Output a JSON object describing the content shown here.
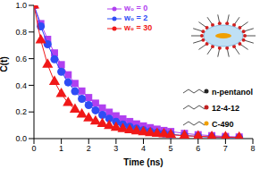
{
  "chart_data": {
    "type": "line",
    "xlabel": "Time (ns)",
    "ylabel": "C(t)",
    "x": [
      0,
      0.25,
      0.5,
      0.75,
      1,
      1.25,
      1.5,
      1.75,
      2,
      2.25,
      2.5,
      2.75,
      3,
      3.25,
      3.5,
      3.75,
      4,
      4.25,
      4.5,
      4.75,
      5,
      5.5,
      6,
      6.5,
      7,
      7.5
    ],
    "series": [
      {
        "name": "w₀ = 0",
        "color": "#b040f0",
        "marker": "square",
        "values": [
          1.0,
          0.863,
          0.745,
          0.643,
          0.555,
          0.479,
          0.414,
          0.357,
          0.308,
          0.266,
          0.23,
          0.198,
          0.171,
          0.148,
          0.128,
          0.11,
          0.095,
          0.082,
          0.071,
          0.061,
          0.053,
          0.039,
          0.029,
          0.022,
          0.016,
          0.012
        ]
      },
      {
        "name": "w₀ = 2",
        "color": "#2f4cf5",
        "marker": "circle",
        "values": [
          1.0,
          0.842,
          0.708,
          0.596,
          0.502,
          0.422,
          0.355,
          0.299,
          0.252,
          0.212,
          0.178,
          0.15,
          0.126,
          0.106,
          0.089,
          0.075,
          0.063,
          0.053,
          0.045,
          0.038,
          0.032,
          0.023,
          0.016,
          0.011,
          0.008,
          0.006
        ]
      },
      {
        "name": "w₀ = 30",
        "color": "#f01818",
        "marker": "triangle",
        "values": [
          1.0,
          0.738,
          0.555,
          0.427,
          0.335,
          0.268,
          0.218,
          0.181,
          0.152,
          0.129,
          0.11,
          0.096,
          0.082,
          0.072,
          0.063,
          0.055,
          0.048,
          0.042,
          0.037,
          0.033,
          0.029,
          0.022,
          0.017,
          0.014,
          0.011,
          0.008
        ]
      }
    ],
    "xlim": [
      0,
      8
    ],
    "xticks": [
      0,
      1,
      2,
      3,
      4,
      5,
      6,
      7,
      8
    ],
    "ylim": [
      0,
      1
    ],
    "yticks": [
      {
        "value": 0,
        "label": "0.0"
      },
      {
        "value": 0.2,
        "label": "0.2"
      },
      {
        "value": 0.4,
        "label": "0.4"
      },
      {
        "value": 0.6,
        "label": "0.6"
      },
      {
        "value": 0.8,
        "label": "0.8"
      },
      {
        "value": 1,
        "label": "1.0"
      }
    ],
    "grid": false,
    "legend": "top",
    "annotations": [
      "n-pentanol",
      "12-4-12",
      "C-490"
    ]
  }
}
